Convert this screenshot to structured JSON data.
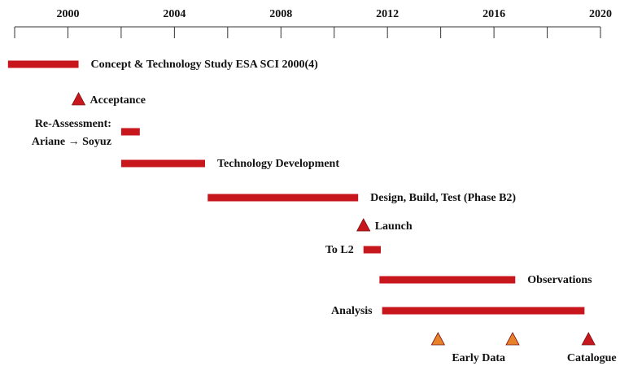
{
  "chart_data": {
    "type": "timeline",
    "xlim": [
      1998,
      2020
    ],
    "xticks": [
      2000,
      2004,
      2008,
      2012,
      2016,
      2020
    ],
    "xminor_ticks": [
      1998,
      2002,
      2006,
      2010,
      2014,
      2018
    ],
    "bar_color": "#c8161d",
    "rows": [
      {
        "label": "Concept & Technology Study ESA SCI 2000(4)",
        "start": 1997.75,
        "end": 2000.4
      },
      {
        "label": "Acceptance",
        "dates": [
          2000.4
        ],
        "color": "#c8161d",
        "label_position": "right"
      },
      {
        "label": [
          "Re-Assessment:",
          "Ariane → Soyuz"
        ],
        "start": 2002.0,
        "end": 2002.7,
        "label_position": "left"
      },
      {
        "label": "Technology Development",
        "start": 2002.0,
        "end": 2005.15
      },
      {
        "label": "Design, Build, Test (Phase B2)",
        "start": 2005.25,
        "end": 2010.9
      },
      {
        "label": "Launch",
        "dates": [
          2011.1
        ],
        "color": "#c8161d",
        "label_position": "right"
      },
      {
        "label": "To L2",
        "start": 2011.1,
        "end": 2011.75,
        "label_position": "left"
      },
      {
        "label": "Observations",
        "start": 2011.7,
        "end": 2016.8
      },
      {
        "label": "Analysis",
        "start": 2011.8,
        "end": 2019.4,
        "label_position": "left"
      },
      {
        "label": "Early Data",
        "dates": [
          2013.9,
          2016.7
        ],
        "color": "#e8822a",
        "label_position": "below"
      },
      {
        "label": "Catalogue",
        "dates": [
          2019.55
        ],
        "color": "#c8161d",
        "label_position": "below"
      }
    ]
  }
}
